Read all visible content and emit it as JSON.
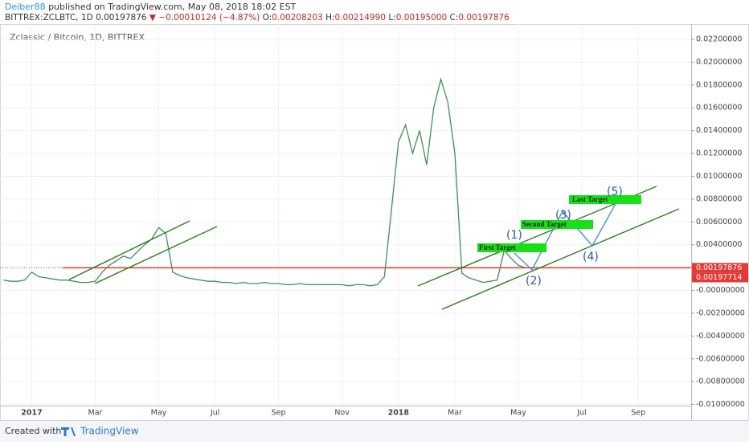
{
  "header": {
    "author": "Deiber88",
    "published": "published on TradingView.com, May 08, 2018 18:02 EST",
    "symbol": "BITTREX:ZCLBTC, 1D",
    "last": "0.00197876",
    "change": "▼ −0.00010124 (−4.87%)",
    "o_label": "O:",
    "o": "0.00208203",
    "h_label": "H:",
    "h": "0.00214990",
    "l_label": "L:",
    "l": "0.00195000",
    "c_label": "C:",
    "c": "0.00197876"
  },
  "chart_data": {
    "type": "line",
    "label": "Zclassic / Bitcoin, 1D, BITTREX",
    "categories": [
      null,
      null,
      null,
      null,
      "2017",
      null,
      null,
      null,
      null,
      null,
      null,
      null,
      null,
      "Mar",
      null,
      null,
      null,
      null,
      null,
      null,
      null,
      null,
      "May",
      null,
      null,
      null,
      null,
      null,
      null,
      null,
      "Jul",
      null,
      null,
      null,
      null,
      null,
      null,
      null,
      null,
      "Sep",
      null,
      null,
      null,
      null,
      null,
      null,
      null,
      null,
      "Nov",
      null,
      null,
      null,
      null,
      null,
      null,
      null,
      "2018",
      null,
      null,
      null,
      null,
      null,
      null,
      null,
      "Mar",
      null,
      null,
      null,
      null,
      null,
      null,
      null,
      null,
      "May",
      null,
      null,
      null,
      null,
      null,
      null,
      null,
      null,
      "Jul",
      null,
      null,
      null,
      null,
      null,
      null,
      null,
      "Sep",
      null,
      null,
      null,
      null,
      null,
      null,
      null
    ],
    "series": [
      {
        "color": "#3f8f5a",
        "values": [
          0.0009,
          0.0008,
          0.0008,
          0.0009,
          0.0016,
          0.0012,
          0.0011,
          0.001,
          0.0009,
          0.0009,
          0.0008,
          0.0007,
          0.0007,
          0.0008,
          0.0016,
          0.0022,
          0.0026,
          0.003,
          0.0028,
          0.0034,
          0.004,
          0.0045,
          0.0055,
          0.005,
          0.0016,
          0.0013,
          0.0011,
          0.001,
          0.0009,
          0.0008,
          0.0008,
          0.0007,
          0.0007,
          0.0006,
          0.0007,
          0.0006,
          0.0006,
          0.0007,
          0.0006,
          0.0006,
          0.0005,
          0.0005,
          0.0006,
          0.0005,
          0.0005,
          0.0005,
          0.0005,
          0.0005,
          0.0005,
          0.0004,
          0.0005,
          0.0005,
          0.0004,
          0.0005,
          0.0012,
          0.007,
          0.013,
          0.0145,
          0.012,
          0.014,
          0.011,
          0.016,
          0.0185,
          0.0165,
          0.012,
          0.0015,
          0.0011,
          0.0009,
          0.0007,
          0.0008,
          0.0009,
          0.0035,
          0.0028,
          0.0022,
          0.00197876,
          null,
          null,
          null,
          null,
          null,
          null,
          null,
          null,
          null,
          null,
          null,
          null,
          null,
          null,
          null,
          null,
          null,
          null,
          null,
          null,
          null,
          null,
          null
        ]
      }
    ],
    "ylim": [
      -0.0101,
      0.0239
    ],
    "yticks": [
      {
        "value": 0.022,
        "label": "0.02200000"
      },
      {
        "value": 0.02,
        "label": "0.02000000"
      },
      {
        "value": 0.018,
        "label": "0.01800000"
      },
      {
        "value": 0.016,
        "label": "0.01600000"
      },
      {
        "value": 0.014,
        "label": "0.01400000"
      },
      {
        "value": 0.012,
        "label": "0.01200000"
      },
      {
        "value": 0.01,
        "label": "0.01000000"
      },
      {
        "value": 0.008,
        "label": "0.00800000"
      },
      {
        "value": 0.006,
        "label": "0.00600000"
      },
      {
        "value": 0.004,
        "label": "0.00400000"
      },
      {
        "value": 0,
        "label": "-0.00000000"
      },
      {
        "value": -0.002,
        "label": "-0.00200000"
      },
      {
        "value": -0.004,
        "label": "-0.00400000"
      },
      {
        "value": -0.006,
        "label": "-0.00600000"
      },
      {
        "value": -0.008,
        "label": "-0.00800000"
      },
      {
        "value": -0.01,
        "label": "-0.01000000"
      }
    ],
    "grid": true,
    "last_price": {
      "value": 0.00197876,
      "label": "0.00197876",
      "color": "#e53935"
    },
    "level_price": {
      "value": 0.00197714,
      "label": "0.00197714",
      "color": "#e53935"
    },
    "annotations": {
      "first": "First Target",
      "second": "Second Target",
      "last": "Last Target",
      "w1": "(1)",
      "w2": "(2)",
      "w3": "(3)",
      "w4": "(4)",
      "w5": "(5)"
    }
  },
  "footer": {
    "created": "Created with",
    "brand": "TradingView"
  }
}
